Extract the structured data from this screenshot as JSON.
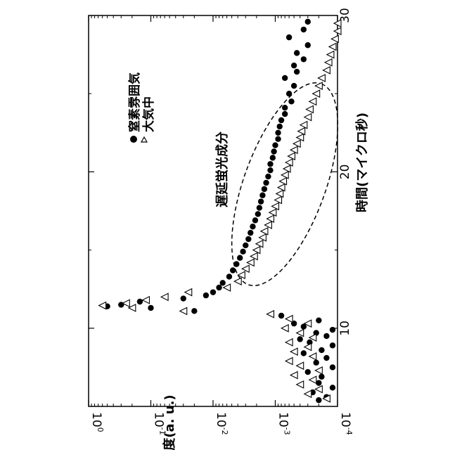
{
  "chart_data": {
    "type": "scatter",
    "orientation": "rotated-90-clockwise",
    "xlabel": "時間(マイクロ秒)",
    "ylabel": "強度(a. u.)",
    "xlim": [
      5,
      30
    ],
    "ylim": [
      0.0001,
      1
    ],
    "yscale": "log",
    "x_ticks": [
      "10",
      "20",
      "30"
    ],
    "y_ticks": [
      {
        "base": "10",
        "exp": "0"
      },
      {
        "base": "10",
        "exp": "-1"
      },
      {
        "base": "10",
        "exp": "-2"
      },
      {
        "base": "10",
        "exp": "-3"
      },
      {
        "base": "10",
        "exp": "-4"
      }
    ],
    "annotation": "遅延蛍光成分",
    "legend_position": "top-left",
    "series": [
      {
        "name": "窒素雰囲気",
        "marker": "filled-circle",
        "color": "#000000",
        "points": [
          [
            5.4,
            0.0002
          ],
          [
            5.6,
            0.00015
          ],
          [
            5.9,
            0.00025
          ],
          [
            6.2,
            0.00012
          ],
          [
            6.5,
            0.0002
          ],
          [
            6.9,
            0.00018
          ],
          [
            7.2,
            0.0003
          ],
          [
            7.5,
            0.00012
          ],
          [
            7.8,
            0.00022
          ],
          [
            8.1,
            0.00015
          ],
          [
            8.4,
            0.00035
          ],
          [
            8.6,
            0.00018
          ],
          [
            8.9,
            0.00012
          ],
          [
            9.1,
            0.00028
          ],
          [
            9.3,
            0.0004
          ],
          [
            9.5,
            0.00015
          ],
          [
            9.7,
            0.00022
          ],
          [
            9.9,
            0.00012
          ],
          [
            10.1,
            0.00035
          ],
          [
            10.3,
            0.0005
          ],
          [
            10.5,
            0.0002
          ],
          [
            10.8,
            0.0008
          ],
          [
            11.1,
            0.02
          ],
          [
            11.3,
            0.1
          ],
          [
            11.4,
            0.5
          ],
          [
            11.5,
            0.3
          ],
          [
            11.7,
            0.15
          ],
          [
            11.9,
            0.03
          ],
          [
            12.1,
            0.013
          ],
          [
            12.3,
            0.01
          ],
          [
            12.6,
            0.008
          ],
          [
            12.9,
            0.007
          ],
          [
            13.3,
            0.0055
          ],
          [
            13.7,
            0.0048
          ],
          [
            14.1,
            0.0042
          ],
          [
            14.5,
            0.0037
          ],
          [
            14.9,
            0.0033
          ],
          [
            15.3,
            0.003
          ],
          [
            15.7,
            0.0027
          ],
          [
            16.1,
            0.0025
          ],
          [
            16.5,
            0.0023
          ],
          [
            16.9,
            0.0021
          ],
          [
            17.3,
            0.0019
          ],
          [
            17.7,
            0.0018
          ],
          [
            18.1,
            0.0017
          ],
          [
            18.5,
            0.0016
          ],
          [
            18.9,
            0.0015
          ],
          [
            19.3,
            0.0014
          ],
          [
            19.7,
            0.0013
          ],
          [
            20.1,
            0.0012
          ],
          [
            20.5,
            0.0012
          ],
          [
            20.9,
            0.0011
          ],
          [
            21.3,
            0.00105
          ],
          [
            21.7,
            0.001
          ],
          [
            22.1,
            0.0009
          ],
          [
            22.5,
            0.0009
          ],
          [
            22.9,
            0.00085
          ],
          [
            23.3,
            0.0008
          ],
          [
            23.7,
            0.0007
          ],
          [
            24.1,
            0.0007
          ],
          [
            24.5,
            0.00055
          ],
          [
            25.0,
            0.0006
          ],
          [
            25.5,
            0.0005
          ],
          [
            26.0,
            0.0007
          ],
          [
            26.4,
            0.00045
          ],
          [
            26.8,
            0.0005
          ],
          [
            27.2,
            0.00035
          ],
          [
            27.6,
            0.00045
          ],
          [
            28.1,
            0.0003
          ],
          [
            28.6,
            0.0006
          ],
          [
            29.1,
            0.00035
          ],
          [
            29.6,
            0.0003
          ]
        ]
      },
      {
        "name": "大気中",
        "marker": "open-triangle",
        "color": "#000000",
        "points": [
          [
            5.5,
            0.00015
          ],
          [
            5.8,
            0.0003
          ],
          [
            6.1,
            0.0002
          ],
          [
            6.4,
            0.0004
          ],
          [
            6.7,
            0.00025
          ],
          [
            7.0,
            0.0005
          ],
          [
            7.3,
            0.0002
          ],
          [
            7.6,
            0.0004
          ],
          [
            7.9,
            0.0006
          ],
          [
            8.2,
            0.00025
          ],
          [
            8.5,
            0.0005
          ],
          [
            8.8,
            0.0003
          ],
          [
            9.1,
            0.0006
          ],
          [
            9.4,
            0.00025
          ],
          [
            9.7,
            0.0004
          ],
          [
            10.0,
            0.0007
          ],
          [
            10.3,
            0.0003
          ],
          [
            10.6,
            0.0006
          ],
          [
            10.9,
            0.0012
          ],
          [
            11.1,
            0.03
          ],
          [
            11.3,
            0.2
          ],
          [
            11.45,
            0.6
          ],
          [
            11.6,
            0.25
          ],
          [
            11.8,
            0.12
          ],
          [
            12.0,
            0.06
          ],
          [
            12.3,
            0.025
          ],
          [
            12.6,
            0.006
          ],
          [
            13.0,
            0.004
          ],
          [
            13.4,
            0.0035
          ],
          [
            13.8,
            0.003
          ],
          [
            14.2,
            0.0025
          ],
          [
            14.6,
            0.0022
          ],
          [
            15.0,
            0.002
          ],
          [
            15.4,
            0.0018
          ],
          [
            15.8,
            0.0016
          ],
          [
            16.2,
            0.0015
          ],
          [
            16.6,
            0.0013
          ],
          [
            17.0,
            0.0012
          ],
          [
            17.4,
            0.0011
          ],
          [
            17.8,
            0.001
          ],
          [
            18.2,
            0.0009
          ],
          [
            18.6,
            0.00085
          ],
          [
            19.0,
            0.0008
          ],
          [
            19.4,
            0.00075
          ],
          [
            19.8,
            0.0007
          ],
          [
            20.2,
            0.00065
          ],
          [
            20.6,
            0.0006
          ],
          [
            21.0,
            0.00055
          ],
          [
            21.4,
            0.0005
          ],
          [
            21.8,
            0.00045
          ],
          [
            22.2,
            0.0004
          ],
          [
            22.6,
            0.00038
          ],
          [
            23.0,
            0.00035
          ],
          [
            23.5,
            0.0003
          ],
          [
            24.0,
            0.00028
          ],
          [
            24.5,
            0.00025
          ],
          [
            25.0,
            0.00022
          ],
          [
            25.5,
            0.0002
          ],
          [
            26.0,
            0.00018
          ],
          [
            26.5,
            0.00015
          ],
          [
            27.0,
            0.00014
          ],
          [
            27.5,
            0.00013
          ],
          [
            28.0,
            0.00012
          ],
          [
            28.5,
            0.00011
          ],
          [
            29.0,
            0.0001
          ],
          [
            29.5,
            0.0001
          ]
        ]
      }
    ]
  }
}
